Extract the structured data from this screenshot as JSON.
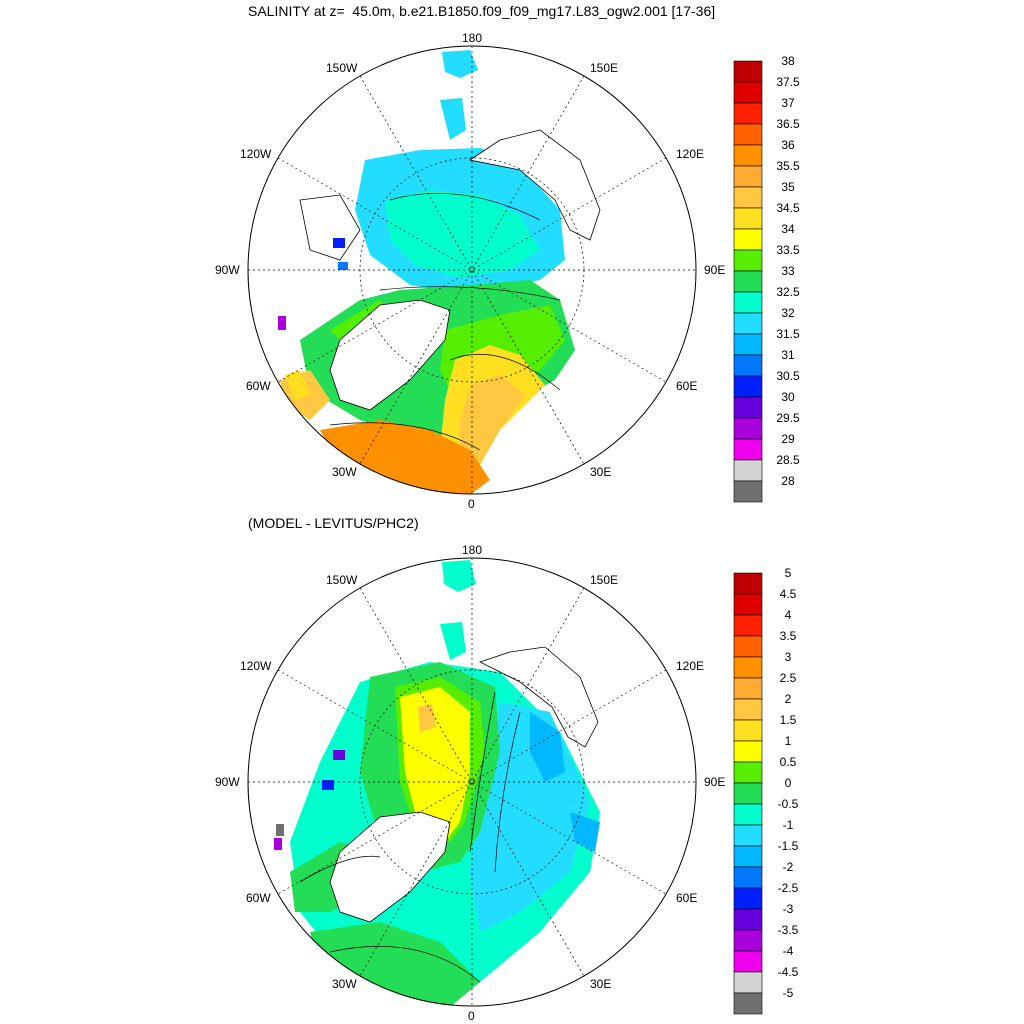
{
  "top_panel": {
    "title": "SALINITY at z=  45.0m, b.e21.B1850.f09_f09_mg17.L83_ogw2.001 [17-36]",
    "longitude_labels": {
      "north": "180",
      "south": "0",
      "east": "90E",
      "west": "90W",
      "nw30": "150W",
      "nw60": "120W",
      "sw60": "60W",
      "sw30": "30W",
      "ne30": "150E",
      "ne60": "120E",
      "se60": "60E",
      "se30": "30E"
    },
    "colorbar_labels": [
      "38",
      "37.5",
      "37",
      "36.5",
      "36",
      "35.5",
      "35",
      "34.5",
      "34",
      "33.5",
      "33",
      "32.5",
      "32",
      "31.5",
      "31",
      "30.5",
      "30",
      "29.5",
      "29",
      "28.5",
      "28"
    ]
  },
  "bottom_panel": {
    "title": "(MODEL - LEVITUS/PHC2)",
    "longitude_labels": {
      "north": "180",
      "south": "0",
      "east": "90E",
      "west": "90W",
      "nw30": "150W",
      "nw60": "120W",
      "sw60": "60W",
      "sw30": "30W",
      "ne30": "150E",
      "ne60": "120E",
      "se60": "60E",
      "se30": "30E"
    },
    "colorbar_labels": [
      "5",
      "4.5",
      "4",
      "3.5",
      "3",
      "2.5",
      "2",
      "1.5",
      "1",
      "0.5",
      "0",
      "-0.5",
      "-1",
      "-1.5",
      "-2",
      "-2.5",
      "-3",
      "-3.5",
      "-4",
      "-4.5",
      "-5"
    ]
  },
  "colorbar_colors": [
    "#c00000",
    "#e00000",
    "#ff2000",
    "#ff6000",
    "#ff9000",
    "#ffaa30",
    "#ffc840",
    "#ffe020",
    "#ffff00",
    "#55ee00",
    "#22dd55",
    "#00ffcc",
    "#22ddff",
    "#00b8ff",
    "#0077ff",
    "#0020ff",
    "#6600dd",
    "#aa00dd",
    "#ee00ee",
    "#d4d4d4",
    "#707070"
  ]
}
